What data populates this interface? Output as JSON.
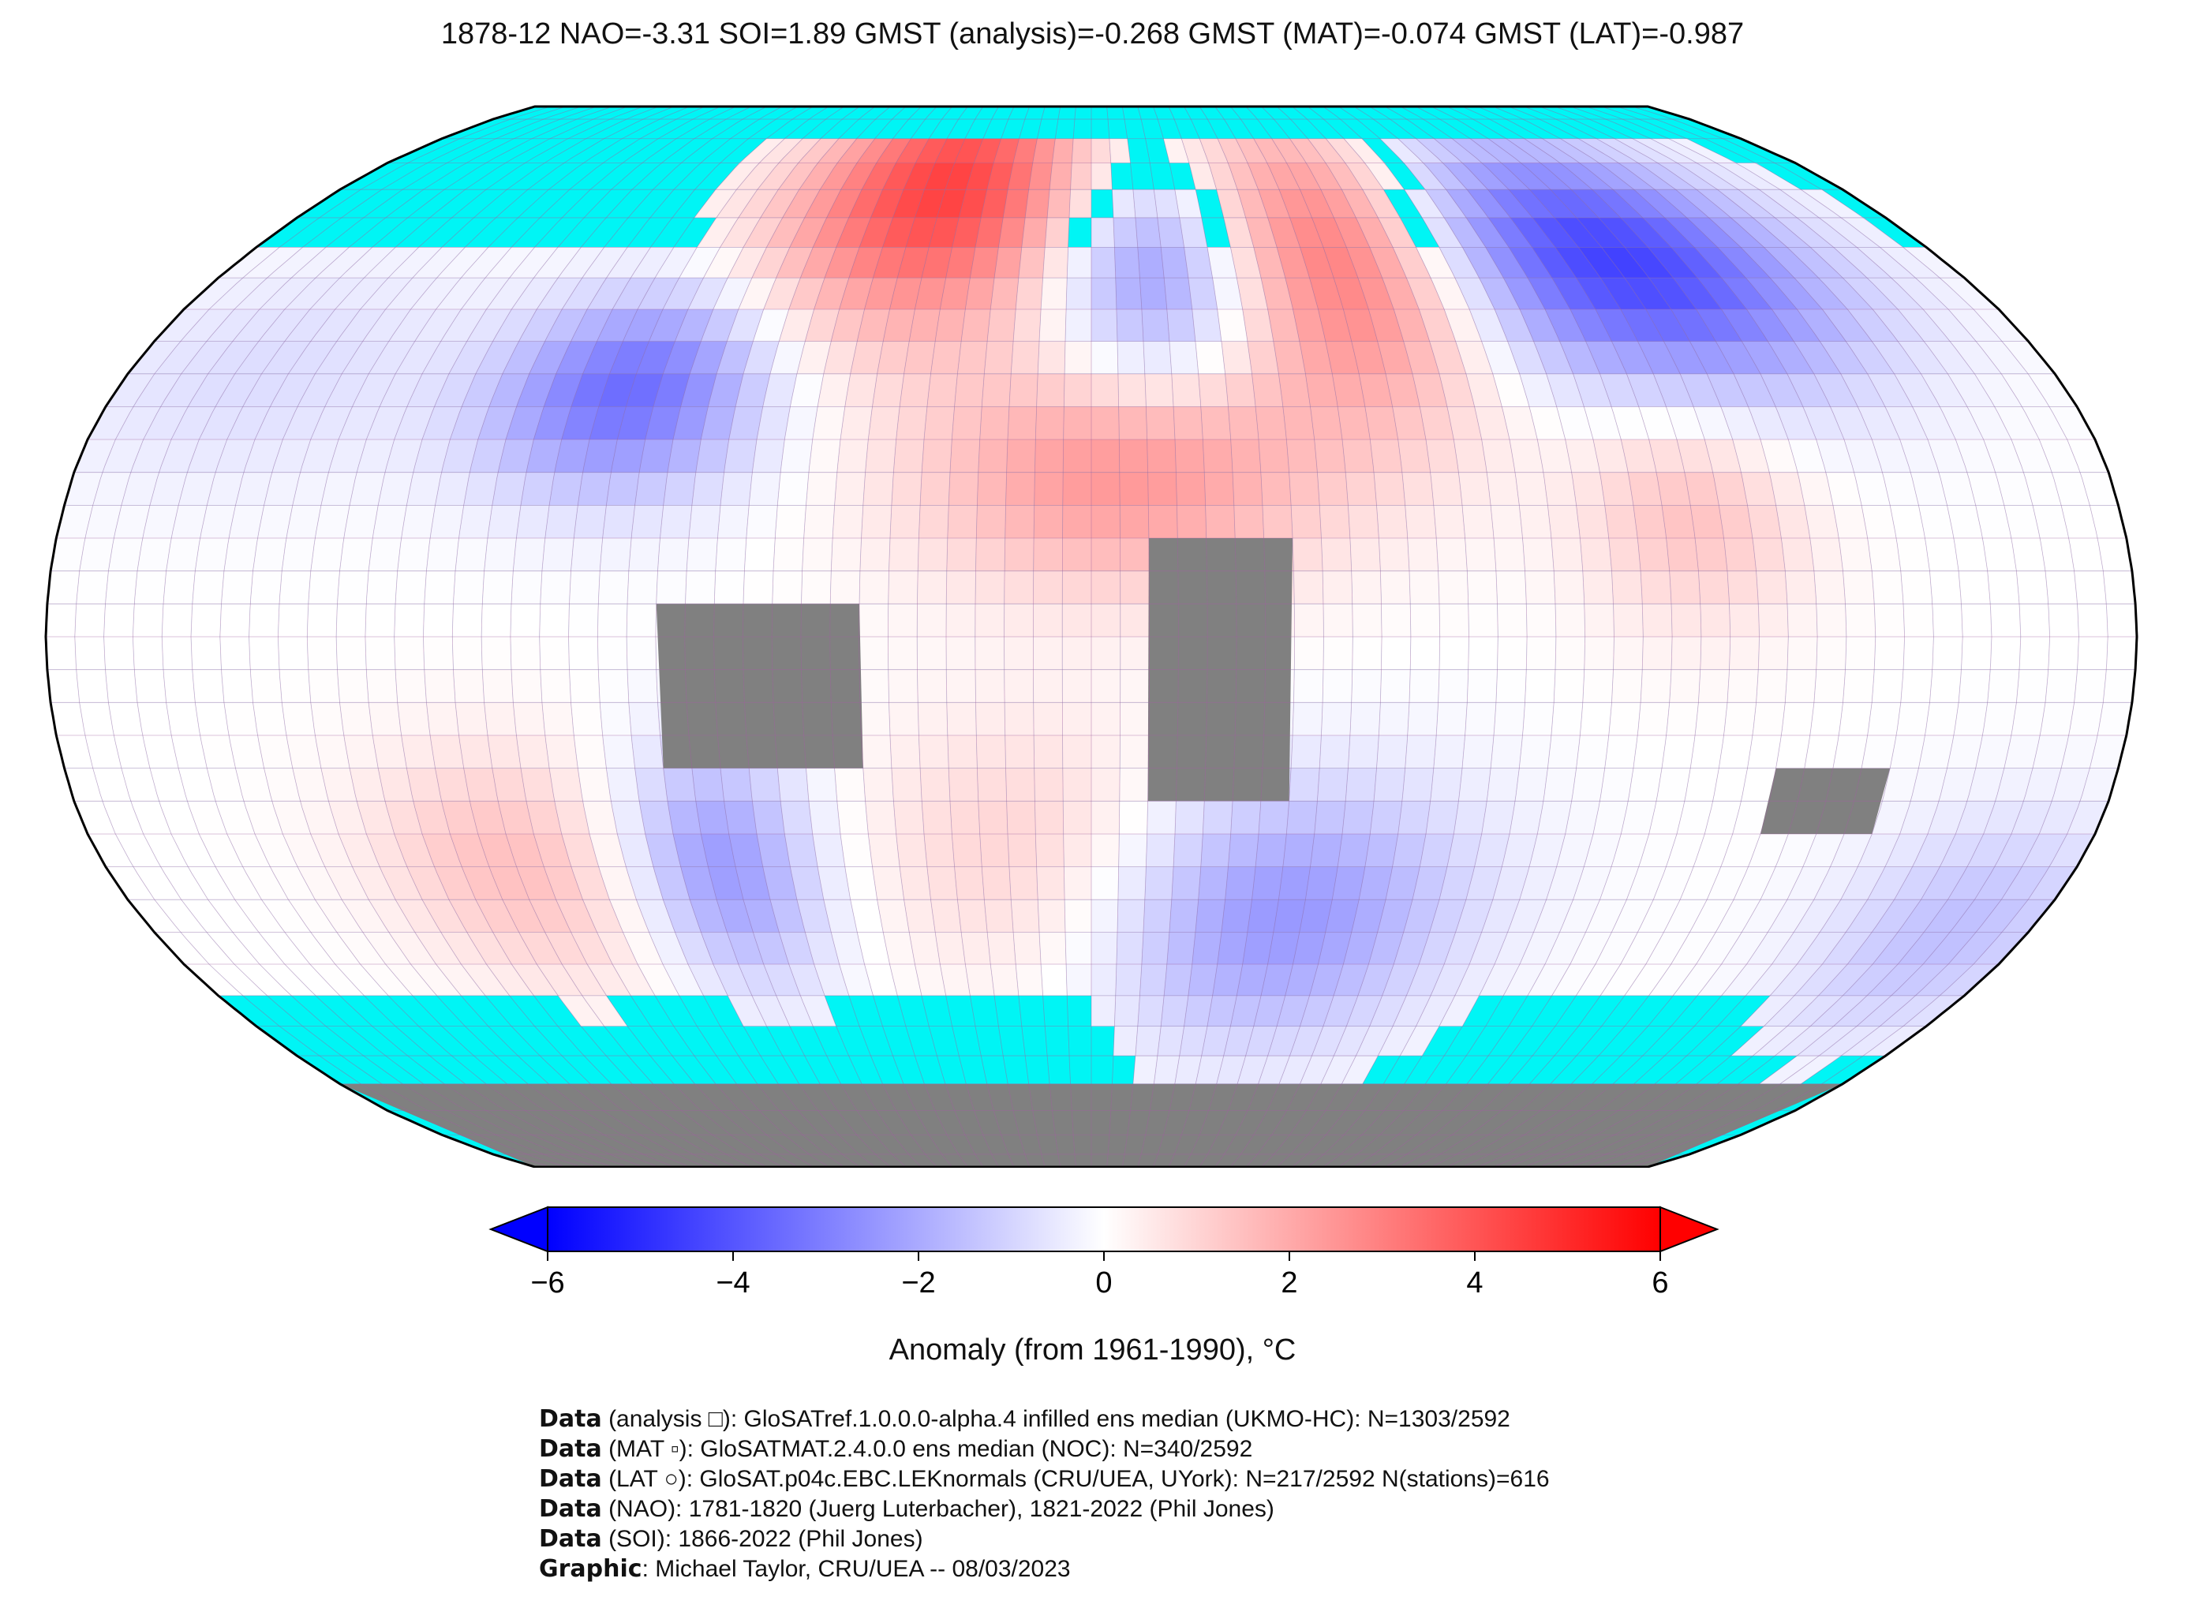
{
  "title": "1878-12 NAO=-3.31 SOI=1.89 GMST (analysis)=-0.268 GMST (MAT)=-0.074 GMST (LAT)=-0.987",
  "colors": {
    "ocean_nodata": "#00f5f5",
    "land_nodata": "#808080",
    "grid": "#a060a0",
    "outline": "#000000",
    "cmap_low": "#0000ff",
    "cmap_mid": "#ffffff",
    "cmap_high": "#ff0000"
  },
  "colorbar": {
    "vmin": -6,
    "vmax": 6,
    "extend": "both",
    "ticks": [
      "−6",
      "−4",
      "−2",
      "0",
      "2",
      "4",
      "6"
    ],
    "tick_values": [
      -6,
      -4,
      -2,
      0,
      2,
      4,
      6
    ],
    "label": "Anomaly (from 1961-1990), °C"
  },
  "map": {
    "projection": "Robinson",
    "grid_resolution_deg": 5,
    "anomaly_regions": [
      {
        "name": "greenland-n-atlantic",
        "lon": [
          -60,
          -10
        ],
        "lat": [
          55,
          85
        ],
        "value": 4.5
      },
      {
        "name": "e-europe-w-siberia",
        "lon": [
          35,
          70
        ],
        "lat": [
          40,
          75
        ],
        "value": 3.5
      },
      {
        "name": "n-africa-e-atlantic",
        "lon": [
          -20,
          30
        ],
        "lat": [
          15,
          35
        ],
        "value": 2.5
      },
      {
        "name": "e-siberia",
        "lon": [
          80,
          140
        ],
        "lat": [
          45,
          70
        ],
        "value": -4.5
      },
      {
        "name": "e-north-america",
        "lon": [
          -100,
          -70
        ],
        "lat": [
          30,
          45
        ],
        "value": -3.5
      },
      {
        "name": "scandinavia-europe",
        "lon": [
          0,
          25
        ],
        "lat": [
          45,
          65
        ],
        "value": -3.0
      },
      {
        "name": "s-indian-ocean",
        "lon": [
          10,
          60
        ],
        "lat": [
          -55,
          -30
        ],
        "value": -2.5
      },
      {
        "name": "se-pacific",
        "lon": [
          -120,
          -90
        ],
        "lat": [
          -45,
          -25
        ],
        "value": 1.5
      },
      {
        "name": "n-pacific",
        "lon": [
          -180,
          -130
        ],
        "lat": [
          30,
          50
        ],
        "value": -0.8
      },
      {
        "name": "s-pacific-nz",
        "lon": [
          150,
          180
        ],
        "lat": [
          -55,
          -35
        ],
        "value": -1.5
      },
      {
        "name": "se-asia",
        "lon": [
          95,
          115
        ],
        "lat": [
          10,
          30
        ],
        "value": 1.5
      },
      {
        "name": "s-america-south",
        "lon": [
          -75,
          -60
        ],
        "lat": [
          -45,
          -25
        ],
        "value": -2.5
      },
      {
        "name": "s-atlantic",
        "lon": [
          -30,
          10
        ],
        "lat": [
          -45,
          -20
        ],
        "value": 1.2
      }
    ],
    "land_nodata_regions": [
      {
        "name": "amazon",
        "lon": [
          -75,
          -40
        ],
        "lat": [
          -20,
          5
        ]
      },
      {
        "name": "central-africa",
        "lon": [
          10,
          35
        ],
        "lat": [
          -25,
          15
        ]
      },
      {
        "name": "w-australia",
        "lon": [
          120,
          140
        ],
        "lat": [
          -30,
          -20
        ]
      },
      {
        "name": "antarctica",
        "lon": [
          -180,
          180
        ],
        "lat": [
          -90,
          -70
        ]
      }
    ]
  },
  "credits": [
    {
      "bold": "Data",
      "text": " (analysis □): GloSATref.1.0.0.0-alpha.4 infilled ens median (UKMO-HC): N=1303/2592"
    },
    {
      "bold": "Data",
      "text": " (MAT ▫): GloSATMAT.2.4.0.0 ens median (NOC): N=340/2592"
    },
    {
      "bold": "Data",
      "text": " (LAT ○): GloSAT.p04c.EBC.LEKnormals (CRU/UEA, UYork): N=217/2592 N(stations)=616"
    },
    {
      "bold": "Data",
      "text": " (NAO): 1781-1820 (Juerg Luterbacher), 1821-2022 (Phil Jones)"
    },
    {
      "bold": "Data",
      "text": " (SOI): 1866-2022 (Phil Jones)"
    },
    {
      "bold": "Graphic",
      "text": ": Michael Taylor, CRU/UEA -- 08/03/2023"
    }
  ]
}
